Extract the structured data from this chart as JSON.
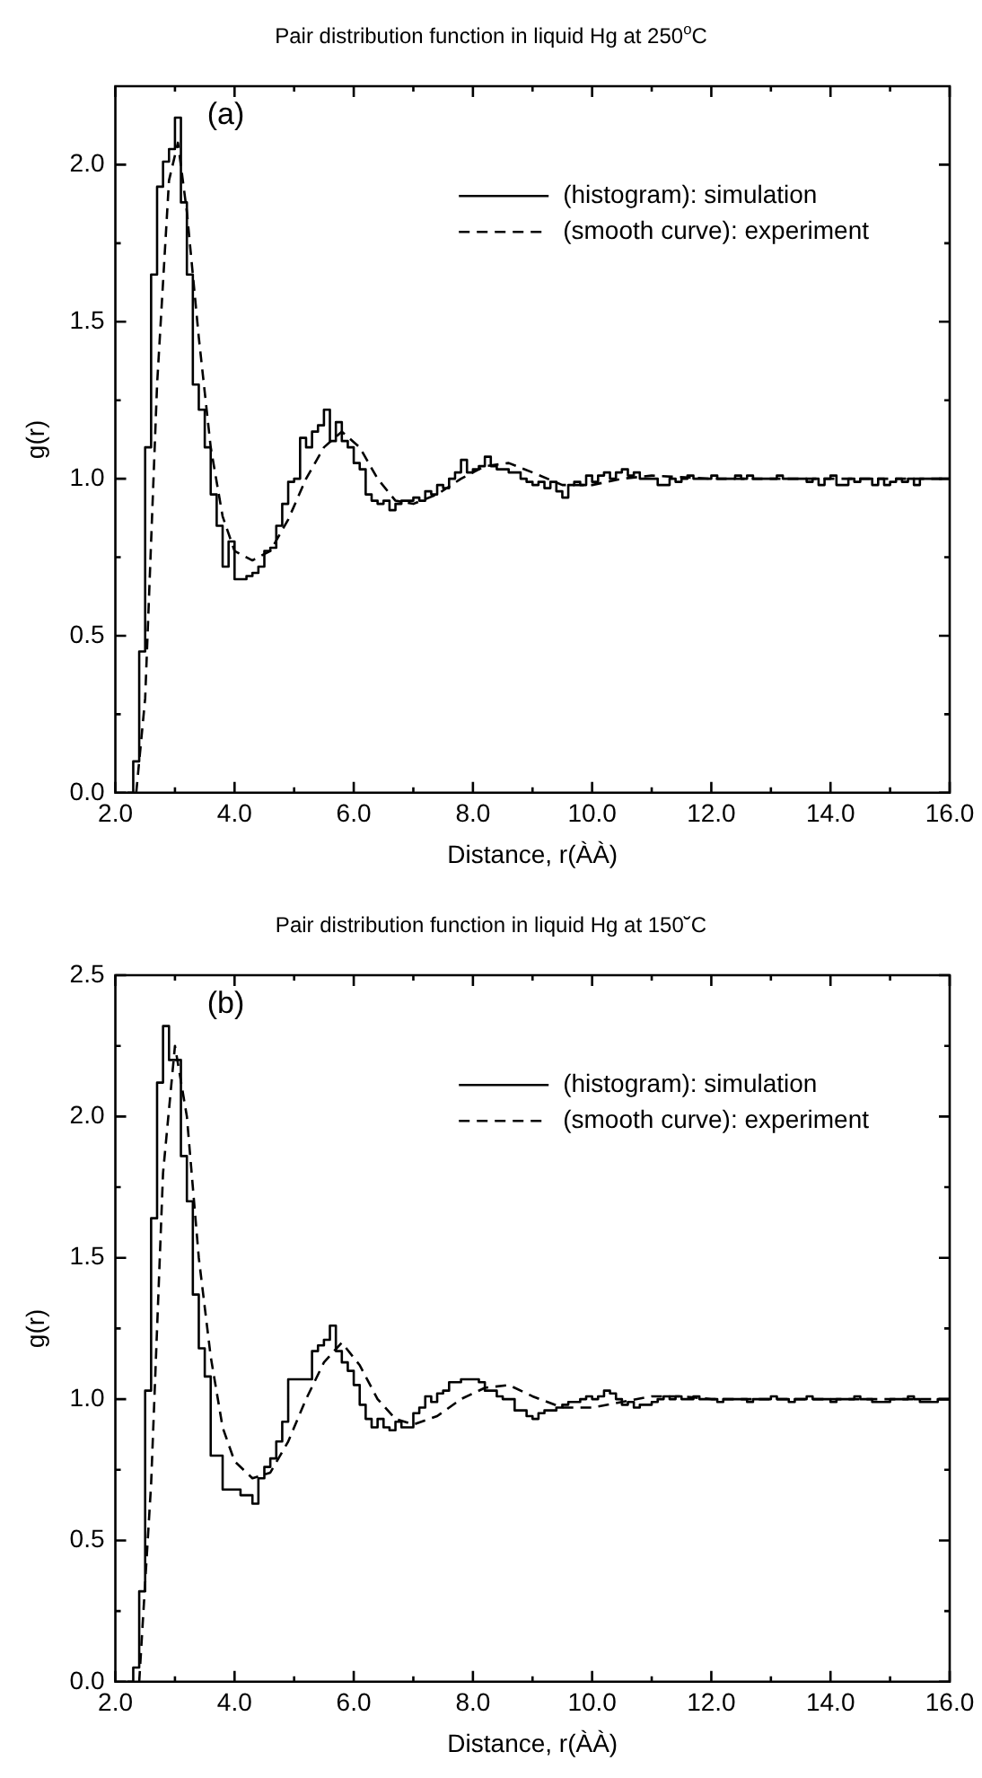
{
  "chart_data": [
    {
      "type": "line",
      "title": "Pair distribution function in liquid Hg at 250$^{o}$C",
      "xlabel": "Distance, r(ÀÀ)",
      "ylabel": "g(r)",
      "annotations": [
        "(a)"
      ],
      "xlim": [
        2.0,
        16.0
      ],
      "xticks": [
        {
          "value": 2,
          "label": "2.0"
        },
        {
          "value": 3,
          "label": null
        },
        {
          "value": 4,
          "label": "4.0"
        },
        {
          "value": 5,
          "label": null
        },
        {
          "value": 6,
          "label": "6.0"
        },
        {
          "value": 7,
          "label": null
        },
        {
          "value": 8,
          "label": "8.0"
        },
        {
          "value": 9,
          "label": null
        },
        {
          "value": 10,
          "label": "10.0"
        },
        {
          "value": 11,
          "label": null
        },
        {
          "value": 12,
          "label": "12.0"
        },
        {
          "value": 13,
          "label": null
        },
        {
          "value": 14,
          "label": "14.0"
        },
        {
          "value": 15,
          "label": null
        },
        {
          "value": 16,
          "label": "16.0"
        }
      ],
      "ylim": [
        0,
        2.25
      ],
      "yticks": [
        {
          "value": 0,
          "label": "0.0"
        },
        {
          "value": 0.25,
          "label": null
        },
        {
          "value": 0.5,
          "label": "0.5"
        },
        {
          "value": 0.75,
          "label": null
        },
        {
          "value": 1,
          "label": "1.0"
        },
        {
          "value": 1.25,
          "label": null
        },
        {
          "value": 1.5,
          "label": "1.5"
        },
        {
          "value": 1.75,
          "label": null
        },
        {
          "value": 2,
          "label": "2.0"
        }
      ],
      "grid": false,
      "legend": "top right",
      "marker": "none",
      "series": [
        {
          "name": "(histogram): simulation",
          "type": "step",
          "color": "#000000",
          "line_style": "solid",
          "x": [
            2.2,
            2.3,
            2.4,
            2.5,
            2.6,
            2.7,
            2.8,
            2.9,
            3.0,
            3.1,
            3.2,
            3.3,
            3.4,
            3.5,
            3.6,
            3.7,
            3.8,
            3.9,
            4.0,
            4.1,
            4.2,
            4.3,
            4.4,
            4.5,
            4.6,
            4.7,
            4.8,
            4.9,
            5.0,
            5.1,
            5.2,
            5.3,
            5.4,
            5.5,
            5.6,
            5.7,
            5.8,
            5.9,
            6.0,
            6.1,
            6.2,
            6.3,
            6.4,
            6.5,
            6.6,
            6.7,
            6.8,
            6.9,
            7.0,
            7.1,
            7.2,
            7.3,
            7.4,
            7.5,
            7.6,
            7.7,
            7.8,
            7.9,
            8.0,
            8.1,
            8.2,
            8.3,
            8.4,
            8.5,
            8.6,
            8.7,
            8.8,
            8.9,
            9.0,
            9.1,
            9.2,
            9.3,
            9.4,
            9.5,
            9.6,
            9.7,
            9.8,
            9.9,
            10.0,
            10.1,
            10.2,
            10.3,
            10.4,
            10.5,
            10.6,
            10.7,
            10.8,
            10.9,
            11.0,
            11.1,
            11.2,
            11.3,
            11.4,
            11.5,
            11.6,
            11.7,
            11.8,
            11.9,
            12.0,
            12.1,
            12.2,
            12.3,
            12.4,
            12.5,
            12.6,
            12.7,
            12.8,
            12.9,
            13.0,
            13.1,
            13.2,
            13.3,
            13.4,
            13.5,
            13.6,
            13.7,
            13.8,
            13.9,
            14.0,
            14.1,
            14.2,
            14.3,
            14.4,
            14.5,
            14.6,
            14.7,
            14.8,
            14.9,
            15.0,
            15.1,
            15.2,
            15.3,
            15.4,
            15.5,
            15.6,
            15.7,
            15.8,
            15.9,
            16.0
          ],
          "values": [
            0,
            0,
            0.1,
            0.45,
            1.1,
            1.65,
            1.93,
            2.01,
            2.05,
            2.15,
            1.88,
            1.65,
            1.3,
            1.22,
            1.1,
            0.95,
            0.85,
            0.72,
            0.8,
            0.68,
            0.68,
            0.69,
            0.7,
            0.72,
            0.77,
            0.78,
            0.85,
            0.92,
            0.99,
            1.0,
            1.13,
            1.1,
            1.15,
            1.17,
            1.22,
            1.12,
            1.18,
            1.12,
            1.1,
            1.05,
            1.03,
            0.95,
            0.93,
            0.92,
            0.93,
            0.9,
            0.92,
            0.93,
            0.93,
            0.94,
            0.93,
            0.96,
            0.95,
            0.98,
            0.97,
            1.0,
            1.02,
            1.06,
            1.02,
            1.03,
            1.04,
            1.07,
            1.04,
            1.03,
            1.03,
            1.02,
            1.02,
            1.0,
            0.99,
            0.98,
            0.99,
            0.97,
            0.99,
            0.96,
            0.94,
            0.98,
            0.99,
            0.98,
            1.01,
            0.99,
            1.01,
            1.02,
            1.0,
            1.02,
            1.03,
            1.01,
            1.02,
            1.0,
            1.0,
            1.0,
            0.98,
            0.98,
            1.0,
            0.99,
            1.0,
            1.01,
            1.0,
            1.0,
            1.0,
            1.01,
            1.0,
            1.0,
            1.0,
            1.01,
            1.0,
            1.01,
            1.0,
            1.0,
            1.0,
            1.0,
            1.01,
            1.0,
            1.0,
            1.0,
            1.0,
            0.99,
            1.0,
            0.98,
            1.0,
            1.01,
            0.98,
            0.98,
            1.0,
            0.99,
            1.0,
            1.0,
            0.98,
            1.0,
            0.98,
            0.99,
            1.0,
            0.99,
            1.0,
            0.98,
            1.0,
            1.0,
            1.0,
            1.0,
            1.0
          ]
        },
        {
          "name": "(smooth curve): experiment",
          "color": "#000000",
          "line_style": "dashed",
          "x": [
            2.35,
            2.5,
            2.7,
            2.9,
            3.05,
            3.2,
            3.4,
            3.6,
            3.8,
            4.0,
            4.3,
            4.6,
            4.9,
            5.2,
            5.5,
            5.8,
            6.1,
            6.4,
            6.7,
            7.0,
            7.4,
            7.8,
            8.2,
            8.6,
            9.0,
            9.5,
            10.0,
            10.5,
            11.0,
            12.0,
            13.0,
            14.0,
            15.0,
            16.0
          ],
          "values": [
            0,
            0.3,
            1.3,
            1.95,
            2.07,
            1.85,
            1.45,
            1.1,
            0.88,
            0.77,
            0.74,
            0.77,
            0.87,
            1.0,
            1.1,
            1.15,
            1.1,
            1.0,
            0.93,
            0.92,
            0.95,
            1.0,
            1.04,
            1.05,
            1.02,
            0.98,
            0.98,
            1.0,
            1.01,
            1.0,
            1.0,
            1.0,
            1.0,
            1.0
          ]
        }
      ]
    },
    {
      "type": "line",
      "title": "Pair distribution function in liquid Hg at 150˘C",
      "xlabel": "Distance, r(ÀÀ)",
      "ylabel": "g(r)",
      "annotations": [
        "(b)"
      ],
      "xlim": [
        2.0,
        16.0
      ],
      "xticks": [
        {
          "value": 2,
          "label": "2.0"
        },
        {
          "value": 3,
          "label": null
        },
        {
          "value": 4,
          "label": "4.0"
        },
        {
          "value": 5,
          "label": null
        },
        {
          "value": 6,
          "label": "6.0"
        },
        {
          "value": 7,
          "label": null
        },
        {
          "value": 8,
          "label": "8.0"
        },
        {
          "value": 9,
          "label": null
        },
        {
          "value": 10,
          "label": "10.0"
        },
        {
          "value": 11,
          "label": null
        },
        {
          "value": 12,
          "label": "12.0"
        },
        {
          "value": 13,
          "label": null
        },
        {
          "value": 14,
          "label": "14.0"
        },
        {
          "value": 15,
          "label": null
        },
        {
          "value": 16,
          "label": "16.0"
        }
      ],
      "ylim": [
        0,
        2.5
      ],
      "yticks": [
        {
          "value": 0,
          "label": "0.0"
        },
        {
          "value": 0.25,
          "label": null
        },
        {
          "value": 0.5,
          "label": "0.5"
        },
        {
          "value": 0.75,
          "label": null
        },
        {
          "value": 1,
          "label": "1.0"
        },
        {
          "value": 1.25,
          "label": null
        },
        {
          "value": 1.5,
          "label": "1.5"
        },
        {
          "value": 1.75,
          "label": null
        },
        {
          "value": 2,
          "label": "2.0"
        },
        {
          "value": 2.25,
          "label": null
        },
        {
          "value": 2.5,
          "label": "2.5"
        }
      ],
      "grid": false,
      "legend": "top right",
      "marker": "none",
      "series": [
        {
          "name": "(histogram): simulation",
          "type": "step",
          "color": "#000000",
          "line_style": "solid",
          "x": [
            2.2,
            2.3,
            2.4,
            2.5,
            2.6,
            2.7,
            2.8,
            2.9,
            3.0,
            3.1,
            3.2,
            3.3,
            3.4,
            3.5,
            3.6,
            3.7,
            3.8,
            3.9,
            4.0,
            4.1,
            4.2,
            4.3,
            4.4,
            4.5,
            4.6,
            4.7,
            4.8,
            4.9,
            5.0,
            5.1,
            5.2,
            5.3,
            5.4,
            5.5,
            5.6,
            5.7,
            5.8,
            5.9,
            6.0,
            6.1,
            6.2,
            6.3,
            6.4,
            6.5,
            6.6,
            6.7,
            6.8,
            6.9,
            7.0,
            7.1,
            7.2,
            7.3,
            7.4,
            7.5,
            7.6,
            7.7,
            7.8,
            7.9,
            8.0,
            8.1,
            8.2,
            8.3,
            8.4,
            8.5,
            8.6,
            8.7,
            8.8,
            8.9,
            9.0,
            9.1,
            9.2,
            9.3,
            9.4,
            9.5,
            9.6,
            9.7,
            9.8,
            9.9,
            10.0,
            10.1,
            10.2,
            10.3,
            10.4,
            10.5,
            10.6,
            10.7,
            10.8,
            10.9,
            11.0,
            11.1,
            11.2,
            11.3,
            11.4,
            11.5,
            11.6,
            11.7,
            11.8,
            11.9,
            12.0,
            12.1,
            12.2,
            12.3,
            12.4,
            12.5,
            12.6,
            12.7,
            12.8,
            12.9,
            13.0,
            13.1,
            13.2,
            13.3,
            13.4,
            13.5,
            13.6,
            13.7,
            13.8,
            13.9,
            14.0,
            14.1,
            14.2,
            14.3,
            14.4,
            14.5,
            14.6,
            14.7,
            14.8,
            14.9,
            15.0,
            15.1,
            15.2,
            15.3,
            15.4,
            15.5,
            15.6,
            15.7,
            15.8,
            15.9,
            16.0
          ],
          "values": [
            0,
            0,
            0.05,
            0.32,
            1.03,
            1.64,
            2.12,
            2.32,
            2.2,
            2.2,
            1.86,
            1.7,
            1.37,
            1.18,
            1.08,
            0.8,
            0.8,
            0.68,
            0.68,
            0.68,
            0.66,
            0.66,
            0.63,
            0.72,
            0.76,
            0.79,
            0.85,
            0.92,
            1.07,
            1.07,
            1.07,
            1.07,
            1.17,
            1.19,
            1.21,
            1.26,
            1.17,
            1.13,
            1.1,
            1.05,
            0.98,
            0.93,
            0.9,
            0.93,
            0.9,
            0.89,
            0.92,
            0.9,
            0.9,
            0.95,
            0.97,
            1.01,
            0.99,
            1.02,
            1.03,
            1.06,
            1.06,
            1.07,
            1.07,
            1.07,
            1.06,
            1.03,
            1.03,
            1.01,
            1.0,
            1.0,
            0.96,
            0.96,
            0.94,
            0.93,
            0.95,
            0.96,
            0.96,
            0.97,
            0.98,
            0.99,
            0.99,
            1.0,
            1.01,
            1.0,
            1.01,
            1.03,
            1.02,
            1.0,
            0.98,
            0.99,
            0.97,
            0.98,
            0.98,
            0.99,
            1.0,
            1.01,
            1.0,
            1.01,
            1.0,
            1.0,
            1.01,
            1.0,
            1.0,
            1.0,
            0.99,
            1.0,
            1.0,
            1.0,
            1.0,
            0.99,
            1.0,
            1.0,
            1.0,
            1.01,
            1.0,
            1.0,
            0.99,
            1.0,
            1.0,
            1.01,
            1.0,
            1.0,
            1.0,
            0.99,
            1.0,
            1.0,
            1.0,
            1.01,
            1.0,
            1.0,
            0.99,
            0.99,
            0.99,
            1.0,
            1.0,
            1.0,
            1.01,
            1.0,
            0.99,
            0.99,
            0.99,
            1.0,
            1.0
          ]
        },
        {
          "name": "(smooth curve): experiment",
          "color": "#000000",
          "line_style": "dashed",
          "x": [
            2.4,
            2.6,
            2.8,
            3.0,
            3.2,
            3.4,
            3.6,
            3.8,
            4.0,
            4.3,
            4.6,
            4.9,
            5.2,
            5.5,
            5.8,
            6.1,
            6.4,
            6.7,
            7.0,
            7.4,
            7.8,
            8.2,
            8.6,
            9.0,
            9.5,
            10.0,
            10.5,
            11.0,
            11.5,
            12.0,
            13.0,
            14.0,
            15.0,
            16.0
          ],
          "values": [
            0,
            0.7,
            1.8,
            2.25,
            2.0,
            1.5,
            1.15,
            0.9,
            0.78,
            0.72,
            0.74,
            0.85,
            1.0,
            1.13,
            1.2,
            1.12,
            1.0,
            0.93,
            0.91,
            0.94,
            1.0,
            1.04,
            1.05,
            1.01,
            0.97,
            0.97,
            0.99,
            1.01,
            1.01,
            1.0,
            1.0,
            1.0,
            1.0,
            1.0
          ]
        }
      ]
    }
  ]
}
